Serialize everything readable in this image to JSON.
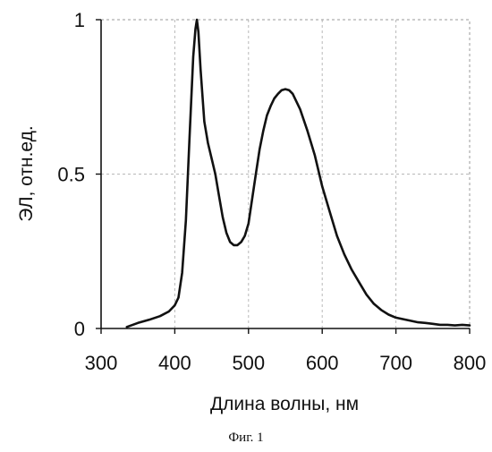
{
  "chart_data": {
    "type": "line",
    "xlabel": "Длина волны, нм",
    "ylabel": "ЭЛ, отн.ед.",
    "xlim": [
      300,
      800
    ],
    "ylim": [
      0,
      1
    ],
    "xticks": [
      300,
      400,
      500,
      600,
      700,
      800
    ],
    "yticks": [
      {
        "value": 0,
        "label": "0"
      },
      {
        "value": 0.5,
        "label": "0.5"
      },
      {
        "value": 1,
        "label": "1"
      }
    ],
    "grid": true,
    "series": [
      {
        "color": "#111111",
        "points": [
          [
            335,
            0.005
          ],
          [
            350,
            0.018
          ],
          [
            365,
            0.028
          ],
          [
            380,
            0.04
          ],
          [
            392,
            0.055
          ],
          [
            400,
            0.075
          ],
          [
            405,
            0.1
          ],
          [
            410,
            0.18
          ],
          [
            415,
            0.35
          ],
          [
            420,
            0.62
          ],
          [
            425,
            0.88
          ],
          [
            428,
            0.97
          ],
          [
            430,
            1.0
          ],
          [
            432,
            0.96
          ],
          [
            435,
            0.84
          ],
          [
            440,
            0.67
          ],
          [
            445,
            0.6
          ],
          [
            450,
            0.55
          ],
          [
            455,
            0.5
          ],
          [
            460,
            0.43
          ],
          [
            465,
            0.36
          ],
          [
            470,
            0.31
          ],
          [
            475,
            0.28
          ],
          [
            480,
            0.27
          ],
          [
            485,
            0.27
          ],
          [
            490,
            0.28
          ],
          [
            495,
            0.3
          ],
          [
            500,
            0.34
          ],
          [
            505,
            0.42
          ],
          [
            510,
            0.5
          ],
          [
            515,
            0.58
          ],
          [
            520,
            0.64
          ],
          [
            525,
            0.69
          ],
          [
            530,
            0.72
          ],
          [
            535,
            0.745
          ],
          [
            540,
            0.76
          ],
          [
            545,
            0.772
          ],
          [
            550,
            0.775
          ],
          [
            555,
            0.772
          ],
          [
            560,
            0.76
          ],
          [
            570,
            0.71
          ],
          [
            580,
            0.64
          ],
          [
            590,
            0.56
          ],
          [
            600,
            0.46
          ],
          [
            610,
            0.38
          ],
          [
            620,
            0.3
          ],
          [
            630,
            0.24
          ],
          [
            640,
            0.19
          ],
          [
            650,
            0.15
          ],
          [
            660,
            0.11
          ],
          [
            670,
            0.08
          ],
          [
            680,
            0.06
          ],
          [
            690,
            0.045
          ],
          [
            700,
            0.035
          ],
          [
            710,
            0.03
          ],
          [
            720,
            0.025
          ],
          [
            730,
            0.02
          ],
          [
            740,
            0.018
          ],
          [
            750,
            0.015
          ],
          [
            760,
            0.012
          ],
          [
            770,
            0.012
          ],
          [
            780,
            0.01
          ],
          [
            790,
            0.012
          ],
          [
            800,
            0.01
          ]
        ]
      }
    ]
  },
  "caption": "Фиг. 1"
}
